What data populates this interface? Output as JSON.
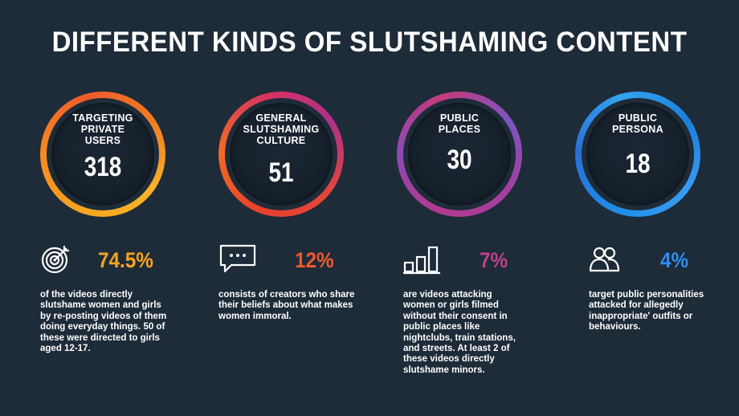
{
  "title": "DIFFERENT KINDS OF SLUTSHAMING CONTENT",
  "colors": {
    "background": "#1e2b38",
    "orange": "#f7a51f",
    "red_orange": "#e8412e",
    "purple": "#b23a8f",
    "blue": "#1d8ee8"
  },
  "categories": [
    {
      "label_lines": [
        "TARGETING",
        "PRIVATE",
        "USERS"
      ],
      "count": "318",
      "icon": "target-icon",
      "percent": "74.5%",
      "percent_color": "#f7a51f",
      "description": "of the videos directly slutshame women and girls by re-posting videos of them doing everyday things. 50 of these were directed to girls aged 12-17."
    },
    {
      "label_lines": [
        "GENERAL",
        "SLUTSHAMING",
        "CULTURE"
      ],
      "count": "51",
      "icon": "chat-bubble-icon",
      "percent": "12%",
      "percent_color": "#ee5a2b",
      "description": "consists of creators who share their beliefs about what makes women immoral."
    },
    {
      "label_lines": [
        "PUBLIC",
        "PLACES"
      ],
      "count": "30",
      "icon": "bar-chart-icon",
      "percent": "7%",
      "percent_color": "#c0408f",
      "description": "are videos attacking women or girls filmed without their consent in public places like nightclubs, train stations, and streets. At least 2 of these videos directly slutshame minors."
    },
    {
      "label_lines": [
        "PUBLIC",
        "PERSONA"
      ],
      "count": "18",
      "icon": "people-icon",
      "percent": "4%",
      "percent_color": "#2f8ef0",
      "description": "target public personalities attacked for allegedly inappropriate' outfits or behaviours."
    }
  ]
}
